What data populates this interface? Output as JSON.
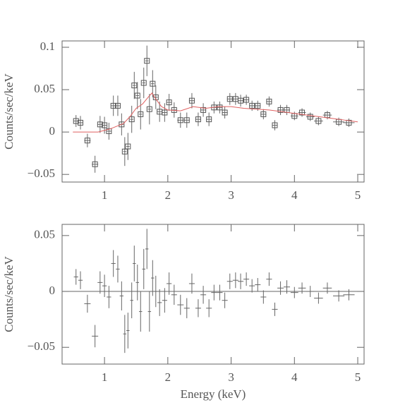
{
  "chart_data": [
    {
      "type": "errorbar",
      "marker": "square",
      "color": "#555555",
      "ylabel": "Counts/sec/keV",
      "xlim": [
        0.33,
        5.1
      ],
      "ylim": [
        -0.059,
        0.1075
      ],
      "xticks": [
        1,
        2,
        3,
        4,
        5
      ],
      "yticks": [
        {
          "value": -0.05,
          "label": "−0.05"
        },
        0,
        0.05,
        0.1
      ],
      "x": [
        0.55,
        0.62,
        0.73,
        0.85,
        0.93,
        1.0,
        1.07,
        1.14,
        1.21,
        1.27,
        1.32,
        1.37,
        1.43,
        1.47,
        1.52,
        1.57,
        1.62,
        1.67,
        1.71,
        1.76,
        1.81,
        1.87,
        1.95,
        2.02,
        2.1,
        2.2,
        2.3,
        2.38,
        2.48,
        2.56,
        2.65,
        2.73,
        2.82,
        2.9,
        2.98,
        3.07,
        3.15,
        3.24,
        3.33,
        3.42,
        3.51,
        3.6,
        3.69,
        3.78,
        3.88,
        4.0,
        4.12,
        4.25,
        4.38,
        4.52,
        4.7,
        4.86
      ],
      "values": [
        0.013,
        0.011,
        -0.01,
        -0.038,
        0.009,
        0.008,
        0.001,
        0.031,
        0.031,
        0.009,
        -0.023,
        -0.017,
        0.015,
        0.055,
        0.043,
        0.021,
        0.058,
        0.084,
        0.027,
        0.057,
        0.041,
        0.024,
        0.023,
        0.035,
        0.026,
        0.014,
        0.014,
        0.037,
        0.015,
        0.026,
        0.015,
        0.029,
        0.029,
        0.023,
        0.039,
        0.039,
        0.037,
        0.038,
        0.031,
        0.031,
        0.021,
        0.036,
        0.008,
        0.026,
        0.026,
        0.019,
        0.023,
        0.018,
        0.013,
        0.02,
        0.012,
        0.011
      ],
      "yerr": [
        0.007,
        0.008,
        0.008,
        0.01,
        0.01,
        0.01,
        0.01,
        0.012,
        0.012,
        0.013,
        0.017,
        0.016,
        0.016,
        0.016,
        0.016,
        0.018,
        0.018,
        0.018,
        0.018,
        0.016,
        0.014,
        0.012,
        0.011,
        0.01,
        0.009,
        0.009,
        0.009,
        0.009,
        0.008,
        0.008,
        0.008,
        0.007,
        0.007,
        0.007,
        0.007,
        0.007,
        0.007,
        0.006,
        0.006,
        0.006,
        0.006,
        0.006,
        0.006,
        0.006,
        0.006,
        0.005,
        0.005,
        0.005,
        0.005,
        0.005,
        0.005,
        0.005
      ],
      "xerr": [
        0.035,
        0.035,
        0.05,
        0.05,
        0.04,
        0.035,
        0.035,
        0.035,
        0.03,
        0.03,
        0.025,
        0.025,
        0.025,
        0.025,
        0.025,
        0.025,
        0.025,
        0.025,
        0.025,
        0.025,
        0.03,
        0.035,
        0.04,
        0.04,
        0.045,
        0.05,
        0.045,
        0.045,
        0.045,
        0.045,
        0.045,
        0.045,
        0.045,
        0.045,
        0.045,
        0.045,
        0.045,
        0.045,
        0.045,
        0.045,
        0.045,
        0.045,
        0.045,
        0.05,
        0.05,
        0.06,
        0.06,
        0.065,
        0.07,
        0.07,
        0.09,
        0.09
      ],
      "model": {
        "color": "#e06060",
        "x": [
          0.5,
          0.9,
          1.0,
          1.1,
          1.2,
          1.3,
          1.4,
          1.5,
          1.6,
          1.7,
          1.75,
          1.8,
          1.9,
          2.0,
          2.2,
          2.4,
          2.6,
          2.8,
          3.0,
          3.2,
          3.4,
          3.6,
          3.8,
          4.0,
          4.2,
          4.4,
          4.6,
          4.8,
          5.0
        ],
        "values": [
          0,
          0,
          0.002,
          0.004,
          0.007,
          0.01,
          0.018,
          0.028,
          0.033,
          0.042,
          0.046,
          0.04,
          0.03,
          0.026,
          0.025,
          0.03,
          0.028,
          0.03,
          0.03,
          0.028,
          0.027,
          0.026,
          0.024,
          0.022,
          0.02,
          0.018,
          0.016,
          0.014,
          0.012
        ]
      }
    },
    {
      "type": "errorbar",
      "marker": "none",
      "color": "#555555",
      "ylabel": "Counts/sec/keV",
      "xlabel": "Energy (keV)",
      "xlim": [
        0.33,
        5.1
      ],
      "ylim": [
        -0.065,
        0.06
      ],
      "xticks": [
        1,
        2,
        3,
        4,
        5
      ],
      "yticks": [
        {
          "value": -0.05,
          "label": "−0.05"
        },
        0,
        0.05
      ],
      "reference_line": 0,
      "x": [
        0.55,
        0.62,
        0.73,
        0.85,
        0.93,
        1.0,
        1.07,
        1.14,
        1.21,
        1.27,
        1.32,
        1.37,
        1.43,
        1.47,
        1.52,
        1.57,
        1.62,
        1.67,
        1.71,
        1.76,
        1.81,
        1.87,
        1.95,
        2.02,
        2.1,
        2.2,
        2.3,
        2.38,
        2.48,
        2.56,
        2.65,
        2.73,
        2.82,
        2.9,
        2.98,
        3.07,
        3.15,
        3.24,
        3.33,
        3.42,
        3.51,
        3.6,
        3.69,
        3.78,
        3.88,
        4.0,
        4.12,
        4.25,
        4.38,
        4.52,
        4.7,
        4.86
      ],
      "values": [
        0.013,
        0.01,
        -0.011,
        -0.04,
        0.008,
        0.005,
        -0.005,
        0.025,
        0.02,
        -0.004,
        -0.038,
        -0.035,
        -0.008,
        0.025,
        0.008,
        -0.018,
        0.02,
        0.038,
        -0.018,
        0.012,
        0,
        -0.01,
        -0.008,
        0.007,
        -0.003,
        -0.012,
        -0.015,
        0.007,
        -0.015,
        -0.003,
        -0.015,
        -0.001,
        -0.001,
        -0.008,
        0.009,
        0.01,
        0.009,
        0.011,
        0.005,
        0.006,
        -0.005,
        0.011,
        -0.016,
        0.003,
        0.004,
        -0.001,
        0.003,
        0,
        -0.006,
        0.003,
        -0.004,
        -0.003
      ],
      "yerr": [
        0.007,
        0.008,
        0.008,
        0.01,
        0.01,
        0.01,
        0.01,
        0.012,
        0.012,
        0.013,
        0.017,
        0.016,
        0.016,
        0.016,
        0.016,
        0.018,
        0.018,
        0.018,
        0.018,
        0.016,
        0.014,
        0.012,
        0.011,
        0.01,
        0.009,
        0.009,
        0.009,
        0.009,
        0.008,
        0.008,
        0.008,
        0.007,
        0.007,
        0.007,
        0.007,
        0.007,
        0.007,
        0.006,
        0.006,
        0.006,
        0.006,
        0.006,
        0.006,
        0.006,
        0.006,
        0.005,
        0.005,
        0.005,
        0.005,
        0.005,
        0.005,
        0.005
      ],
      "xerr": [
        0.035,
        0.035,
        0.05,
        0.05,
        0.04,
        0.035,
        0.035,
        0.035,
        0.03,
        0.03,
        0.025,
        0.025,
        0.025,
        0.025,
        0.025,
        0.025,
        0.025,
        0.025,
        0.025,
        0.025,
        0.03,
        0.035,
        0.04,
        0.04,
        0.045,
        0.05,
        0.045,
        0.045,
        0.045,
        0.045,
        0.045,
        0.045,
        0.045,
        0.045,
        0.045,
        0.045,
        0.045,
        0.045,
        0.045,
        0.045,
        0.045,
        0.045,
        0.045,
        0.05,
        0.05,
        0.06,
        0.06,
        0.065,
        0.07,
        0.07,
        0.09,
        0.09
      ]
    }
  ]
}
